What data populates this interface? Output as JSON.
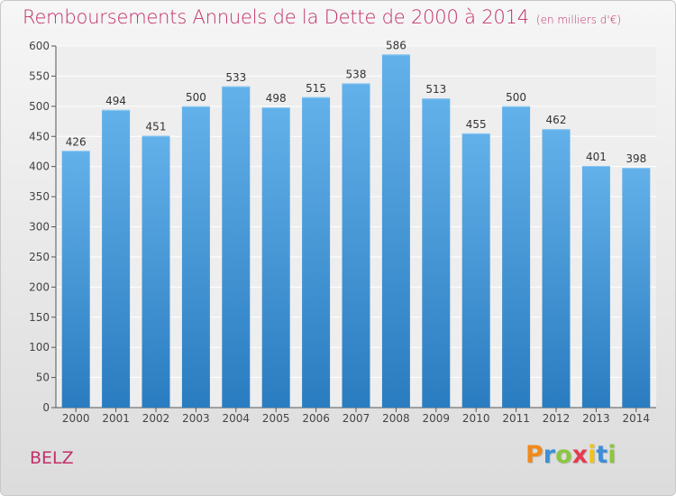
{
  "chart_data": {
    "type": "bar",
    "title": "Remboursements Annuels de la Dette de 2000 à 2014",
    "subtitle": "(en milliers d'€)",
    "categories": [
      "2000",
      "2001",
      "2002",
      "2003",
      "2004",
      "2005",
      "2006",
      "2007",
      "2008",
      "2009",
      "2010",
      "2011",
      "2012",
      "2013",
      "2014"
    ],
    "values": [
      426,
      494,
      451,
      500,
      533,
      498,
      515,
      538,
      586,
      513,
      455,
      500,
      462,
      401,
      398
    ],
    "ylim": [
      0,
      600
    ],
    "yticks": [
      0,
      50,
      100,
      150,
      200,
      250,
      300,
      350,
      400,
      450,
      500,
      550,
      600
    ],
    "grid": true,
    "bar_color_top": "#63b1ea",
    "bar_color_bottom": "#2a7cc0"
  },
  "footer": {
    "commune": "BELZ",
    "logo_letters": [
      "P",
      "r",
      "o",
      "x",
      "i",
      "t",
      "i"
    ],
    "logo_colors": [
      "#f08a1c",
      "#3c8fd6",
      "#8cc63f",
      "#e33b52",
      "#f2c313",
      "#3c8fd6",
      "#8cc63f"
    ]
  }
}
